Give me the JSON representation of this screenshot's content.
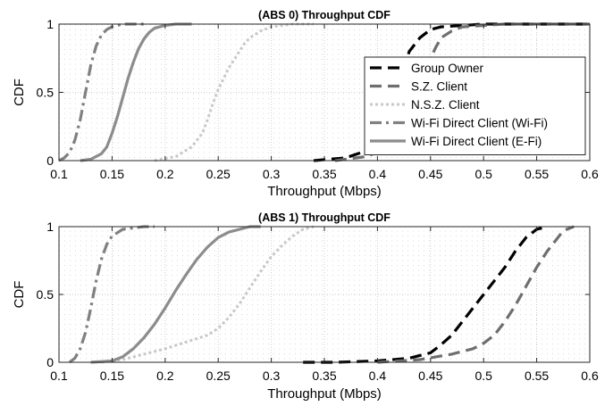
{
  "chart_data": [
    {
      "type": "line",
      "title": "(ABS 0) Throughput CDF",
      "xlabel": "Throughput (Mbps)",
      "ylabel": "CDF",
      "xlim": [
        0.1,
        0.6
      ],
      "ylim": [
        0,
        1
      ],
      "xticks": [
        "0.1",
        "0.15",
        "0.2",
        "0.25",
        "0.3",
        "0.35",
        "0.4",
        "0.45",
        "0.5",
        "0.55",
        "0.6"
      ],
      "yticks": [
        "0",
        "0.5",
        "1"
      ],
      "grid": true,
      "legend_position": "right",
      "series": [
        {
          "name": "Group Owner",
          "color": "#000000",
          "style": "dashed",
          "x": [
            0.34,
            0.37,
            0.385,
            0.395,
            0.405,
            0.41,
            0.415,
            0.42,
            0.425,
            0.43,
            0.44,
            0.45,
            0.46,
            0.48,
            0.5,
            0.53,
            0.6
          ],
          "y": [
            0,
            0.02,
            0.06,
            0.12,
            0.2,
            0.3,
            0.42,
            0.55,
            0.68,
            0.8,
            0.9,
            0.96,
            0.98,
            0.99,
            1,
            1,
            1
          ]
        },
        {
          "name": "S.Z. Client",
          "color": "#6e6e6e",
          "style": "dashed",
          "x": [
            0.36,
            0.39,
            0.405,
            0.415,
            0.425,
            0.43,
            0.435,
            0.44,
            0.445,
            0.45,
            0.455,
            0.46,
            0.47,
            0.48,
            0.5,
            0.52,
            0.55,
            0.6
          ],
          "y": [
            0,
            0.03,
            0.08,
            0.15,
            0.25,
            0.35,
            0.45,
            0.56,
            0.66,
            0.75,
            0.83,
            0.9,
            0.95,
            0.98,
            0.99,
            1,
            1,
            1
          ]
        },
        {
          "name": "N.S.Z. Client",
          "color": "#c8c8c8",
          "style": "dotted",
          "x": [
            0.19,
            0.21,
            0.225,
            0.235,
            0.24,
            0.245,
            0.25,
            0.255,
            0.26,
            0.265,
            0.27,
            0.275,
            0.28,
            0.29,
            0.3,
            0.32,
            0.34
          ],
          "y": [
            0,
            0.03,
            0.1,
            0.2,
            0.3,
            0.42,
            0.52,
            0.6,
            0.68,
            0.74,
            0.8,
            0.86,
            0.9,
            0.95,
            0.98,
            1,
            1
          ]
        },
        {
          "name": "Wi-Fi Direct Client (Wi-Fi)",
          "color": "#808080",
          "style": "dashdot",
          "x": [
            0.1,
            0.105,
            0.11,
            0.115,
            0.12,
            0.125,
            0.13,
            0.135,
            0.14,
            0.145,
            0.15,
            0.155,
            0.16,
            0.17,
            0.18
          ],
          "y": [
            0,
            0.02,
            0.06,
            0.15,
            0.3,
            0.5,
            0.7,
            0.84,
            0.92,
            0.96,
            0.98,
            0.99,
            1,
            1,
            1
          ]
        },
        {
          "name": "Wi-Fi Direct Client (E-Fi)",
          "color": "#8c8c8c",
          "style": "solid",
          "x": [
            0.12,
            0.13,
            0.14,
            0.145,
            0.15,
            0.155,
            0.16,
            0.165,
            0.17,
            0.175,
            0.18,
            0.185,
            0.19,
            0.2,
            0.21,
            0.225
          ],
          "y": [
            0,
            0.01,
            0.05,
            0.1,
            0.2,
            0.32,
            0.46,
            0.6,
            0.72,
            0.82,
            0.89,
            0.94,
            0.97,
            0.99,
            1,
            1
          ]
        }
      ]
    },
    {
      "type": "line",
      "title": "(ABS 1) Throughput CDF",
      "xlabel": "Throughput (Mbps)",
      "ylabel": "CDF",
      "xlim": [
        0.1,
        0.6
      ],
      "ylim": [
        0,
        1
      ],
      "xticks": [
        "0.1",
        "0.15",
        "0.2",
        "0.25",
        "0.3",
        "0.35",
        "0.4",
        "0.45",
        "0.5",
        "0.55",
        "0.6"
      ],
      "yticks": [
        "0",
        "0.5",
        "1"
      ],
      "grid": true,
      "series": [
        {
          "name": "Group Owner",
          "color": "#000000",
          "style": "dashed",
          "x": [
            0.33,
            0.36,
            0.4,
            0.43,
            0.45,
            0.46,
            0.47,
            0.48,
            0.49,
            0.5,
            0.51,
            0.52,
            0.53,
            0.54,
            0.55,
            0.56
          ],
          "y": [
            0,
            0,
            0.01,
            0.03,
            0.07,
            0.13,
            0.2,
            0.3,
            0.4,
            0.5,
            0.6,
            0.7,
            0.82,
            0.92,
            0.98,
            1
          ]
        },
        {
          "name": "S.Z. Client",
          "color": "#6e6e6e",
          "style": "dashed",
          "x": [
            0.4,
            0.44,
            0.47,
            0.49,
            0.5,
            0.51,
            0.52,
            0.53,
            0.54,
            0.55,
            0.56,
            0.57,
            0.575,
            0.585
          ],
          "y": [
            0,
            0.02,
            0.06,
            0.1,
            0.14,
            0.2,
            0.3,
            0.42,
            0.56,
            0.7,
            0.82,
            0.92,
            0.97,
            1
          ]
        },
        {
          "name": "N.S.Z. Client",
          "color": "#c8c8c8",
          "style": "dotted",
          "x": [
            0.14,
            0.16,
            0.18,
            0.2,
            0.22,
            0.24,
            0.25,
            0.26,
            0.27,
            0.28,
            0.29,
            0.3,
            0.31,
            0.32,
            0.33,
            0.34
          ],
          "y": [
            0,
            0.02,
            0.06,
            0.1,
            0.15,
            0.2,
            0.25,
            0.33,
            0.43,
            0.55,
            0.67,
            0.78,
            0.86,
            0.93,
            0.98,
            1
          ]
        },
        {
          "name": "Wi-Fi Direct Client (Wi-Fi)",
          "color": "#808080",
          "style": "dashdot",
          "x": [
            0.11,
            0.115,
            0.12,
            0.125,
            0.13,
            0.135,
            0.14,
            0.145,
            0.15,
            0.16,
            0.17,
            0.18,
            0.19
          ],
          "y": [
            0,
            0.03,
            0.1,
            0.22,
            0.4,
            0.6,
            0.76,
            0.87,
            0.93,
            0.98,
            0.99,
            1,
            1
          ]
        },
        {
          "name": "Wi-Fi Direct Client (E-Fi)",
          "color": "#8c8c8c",
          "style": "solid",
          "x": [
            0.13,
            0.15,
            0.16,
            0.17,
            0.18,
            0.19,
            0.2,
            0.21,
            0.22,
            0.23,
            0.24,
            0.25,
            0.26,
            0.27,
            0.28,
            0.29
          ],
          "y": [
            0,
            0.01,
            0.04,
            0.1,
            0.18,
            0.28,
            0.4,
            0.53,
            0.65,
            0.76,
            0.85,
            0.92,
            0.96,
            0.98,
            1,
            1
          ]
        }
      ]
    }
  ]
}
